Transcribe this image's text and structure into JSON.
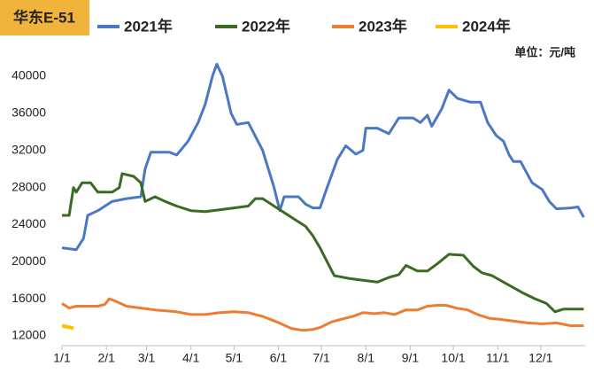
{
  "chart_data": {
    "type": "line",
    "title": "华东E-51",
    "unit_label": "单位：元/吨",
    "xlim": [
      0,
      365
    ],
    "xticks": [
      {
        "value": 0,
        "label": "1/1"
      },
      {
        "value": 31,
        "label": "2/1"
      },
      {
        "value": 59,
        "label": "3/1"
      },
      {
        "value": 90,
        "label": "4/1"
      },
      {
        "value": 120,
        "label": "5/1"
      },
      {
        "value": 151,
        "label": "6/1"
      },
      {
        "value": 181,
        "label": "7/1"
      },
      {
        "value": 212,
        "label": "8/1"
      },
      {
        "value": 243,
        "label": "9/1"
      },
      {
        "value": 273,
        "label": "10/1"
      },
      {
        "value": 304,
        "label": "11/1"
      },
      {
        "value": 334,
        "label": "12/1"
      }
    ],
    "ylim": [
      12000,
      40000
    ],
    "yticks": [
      12000,
      16000,
      20000,
      24000,
      28000,
      32000,
      36000,
      40000
    ],
    "grid": false,
    "series": [
      {
        "name": "2021年",
        "color": "#4a78c2",
        "x": [
          0,
          10,
          15,
          18,
          25,
          35,
          45,
          55,
          58,
          62,
          75,
          80,
          88,
          95,
          100,
          105,
          108,
          112,
          118,
          122,
          130,
          135,
          140,
          148,
          152,
          155,
          165,
          170,
          175,
          180,
          185,
          192,
          198,
          205,
          210,
          212,
          220,
          228,
          235,
          245,
          250,
          255,
          258,
          265,
          270,
          276,
          285,
          292,
          297,
          303,
          308,
          312,
          315,
          320,
          328,
          335,
          340,
          345,
          355,
          360,
          364
        ],
        "values": [
          21500,
          21300,
          22500,
          25000,
          25500,
          26500,
          26800,
          27000,
          30000,
          31800,
          31800,
          31500,
          33000,
          35000,
          37000,
          40000,
          41300,
          40000,
          36000,
          34800,
          35000,
          33500,
          32000,
          28000,
          25500,
          27000,
          27000,
          26200,
          25800,
          25800,
          28000,
          31000,
          32500,
          31600,
          32000,
          34400,
          34400,
          33800,
          35500,
          35500,
          35000,
          35800,
          34600,
          36500,
          38500,
          37600,
          37200,
          37200,
          35000,
          33600,
          33000,
          31500,
          30800,
          30800,
          28500,
          27800,
          26500,
          25700,
          25800,
          25900,
          24800
        ]
      },
      {
        "name": "2022年",
        "color": "#3b6b23",
        "x": [
          0,
          5,
          8,
          10,
          14,
          20,
          25,
          35,
          40,
          42,
          50,
          55,
          58,
          65,
          72,
          80,
          90,
          100,
          110,
          120,
          130,
          135,
          140,
          150,
          160,
          170,
          175,
          180,
          185,
          190,
          200,
          210,
          220,
          228,
          235,
          240,
          248,
          255,
          262,
          270,
          280,
          287,
          293,
          300,
          308,
          315,
          322,
          330,
          338,
          344,
          350,
          364
        ],
        "values": [
          25000,
          25000,
          28000,
          27500,
          28500,
          28500,
          27500,
          27500,
          28000,
          29500,
          29200,
          28500,
          26500,
          27000,
          26500,
          26000,
          25500,
          25400,
          25600,
          25800,
          26000,
          26800,
          26800,
          25800,
          24800,
          23800,
          22800,
          21500,
          20000,
          18500,
          18200,
          18000,
          17800,
          18300,
          18600,
          19600,
          19000,
          19000,
          19800,
          20800,
          20700,
          19500,
          18800,
          18500,
          17800,
          17200,
          16600,
          16000,
          15500,
          14600,
          14900,
          14900
        ]
      },
      {
        "name": "2023年",
        "color": "#ed7d31",
        "x": [
          0,
          5,
          10,
          25,
          30,
          33,
          38,
          45,
          55,
          65,
          80,
          90,
          100,
          110,
          120,
          130,
          140,
          150,
          160,
          168,
          175,
          180,
          188,
          195,
          203,
          210,
          218,
          225,
          232,
          240,
          248,
          255,
          262,
          268,
          275,
          283,
          290,
          298,
          305,
          315,
          325,
          335,
          345,
          355,
          364
        ],
        "values": [
          15500,
          15000,
          15200,
          15200,
          15400,
          16000,
          15700,
          15200,
          15000,
          14800,
          14600,
          14300,
          14300,
          14500,
          14600,
          14500,
          14100,
          13500,
          12800,
          12600,
          12700,
          12900,
          13500,
          13800,
          14100,
          14500,
          14400,
          14500,
          14300,
          14800,
          14800,
          15200,
          15300,
          15300,
          15000,
          14800,
          14300,
          13900,
          13800,
          13600,
          13400,
          13300,
          13400,
          13100,
          13100
        ]
      },
      {
        "name": "2024年",
        "color": "#ffc000",
        "x": [
          0,
          3,
          6,
          8
        ],
        "values": [
          13100,
          13000,
          12900,
          12800
        ]
      }
    ]
  }
}
